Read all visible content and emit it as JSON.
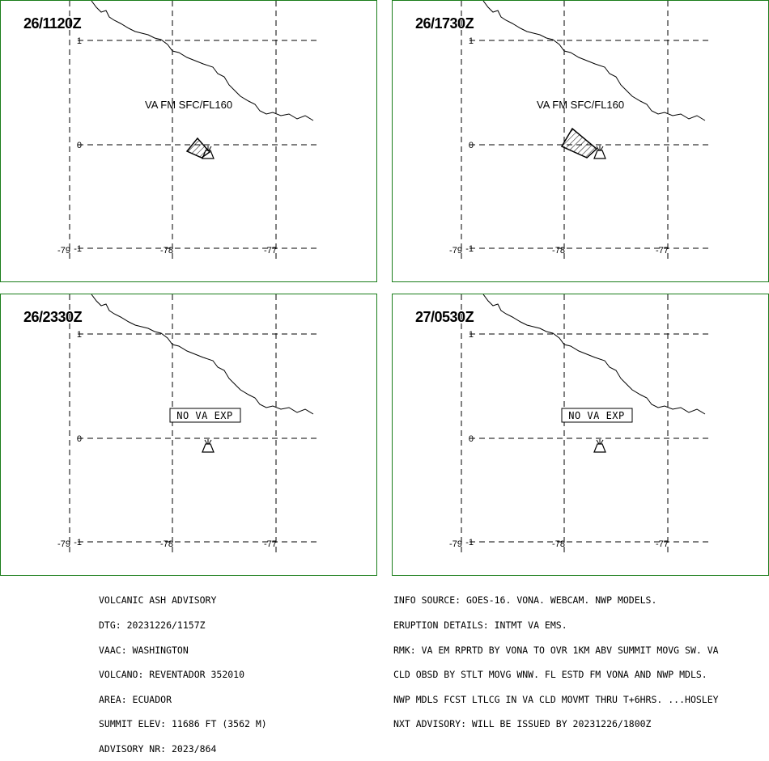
{
  "panels": [
    {
      "time": "26/1120Z",
      "label": "VA FM SFC/FL160",
      "box": false,
      "cloud": "small"
    },
    {
      "time": "26/1730Z",
      "label": "VA FM SFC/FL160",
      "box": false,
      "cloud": "large"
    },
    {
      "time": "26/2330Z",
      "label": "NO VA EXP",
      "box": true,
      "cloud": "none"
    },
    {
      "time": "27/0530Z",
      "label": "NO VA EXP",
      "box": true,
      "cloud": "none"
    }
  ],
  "axis": {
    "lat_labels": [
      "1",
      "0",
      "-1"
    ],
    "lon_labels": [
      "-79",
      "-78",
      "-77"
    ]
  },
  "footer_left": [
    "VOLCANIC ASH ADVISORY",
    "DTG: 20231226/1157Z",
    "VAAC: WASHINGTON",
    "VOLCANO: REVENTADOR 352010",
    "AREA: ECUADOR",
    "SUMMIT ELEV: 11686 FT (3562 M)",
    "ADVISORY NR: 2023/864"
  ],
  "footer_right": [
    "INFO SOURCE: GOES-16. VONA. WEBCAM. NWP MODELS.",
    "ERUPTION DETAILS: INTMT VA EMS.",
    "RMK: VA EM RPRTD BY VONA TO OVR 1KM ABV SUMMIT MOVG SW. VA",
    "CLD OBSD BY STLT MOVG WNW. FL ESTD FM VONA AND NWP MDLS.",
    "NWP MDLS FCST LTLCG IN VA CLD MOVMT THRU T+6HRS. ...HOSLEY",
    "NXT ADVISORY: WILL BE ISSUED BY 20231226/1800Z"
  ],
  "colors": {
    "frame": "#1a7d1a",
    "ink": "#000000"
  }
}
